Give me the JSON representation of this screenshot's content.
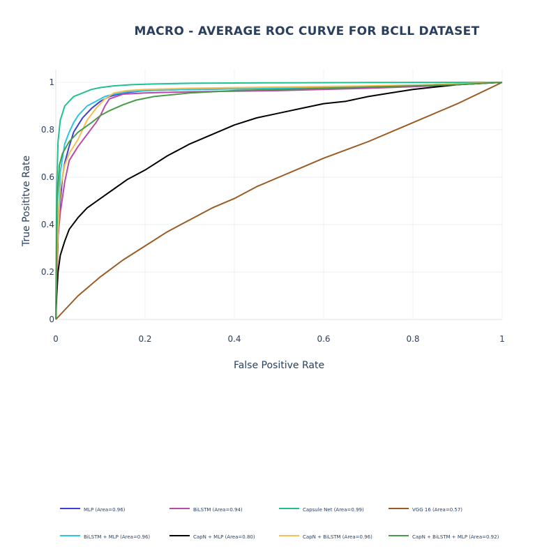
{
  "chart_data": {
    "type": "line",
    "title": "MACRO - AVERAGE  ROC CURVE  FOR  BCLL  DATASET",
    "xlabel": "False Positive Rate",
    "ylabel": "True Posititve Rate",
    "xlim": [
      0,
      1
    ],
    "ylim": [
      0,
      1
    ],
    "xticks": [
      "0",
      "0.2",
      "0.4",
      "0.6",
      "0.8",
      "1"
    ],
    "yticks": [
      "0",
      "0.2",
      "0.4",
      "0.6",
      "0.8",
      "1"
    ],
    "grid": true,
    "legend_position": "bottom",
    "series": [
      {
        "name": "MLP (Area=0.96)",
        "color": "#3b3fd6",
        "x": [
          0,
          0.005,
          0.01,
          0.015,
          0.02,
          0.03,
          0.04,
          0.05,
          0.06,
          0.08,
          0.1,
          0.12,
          0.15,
          0.2,
          0.3,
          0.5,
          0.7,
          0.85,
          1
        ],
        "y": [
          0,
          0.35,
          0.5,
          0.6,
          0.66,
          0.73,
          0.79,
          0.82,
          0.85,
          0.89,
          0.92,
          0.94,
          0.955,
          0.965,
          0.97,
          0.975,
          0.98,
          0.99,
          1
        ]
      },
      {
        "name": "BiLSTM (Area=0.94)",
        "color": "#b84aa6",
        "x": [
          0,
          0.005,
          0.01,
          0.02,
          0.03,
          0.05,
          0.07,
          0.09,
          0.1,
          0.11,
          0.12,
          0.15,
          0.2,
          0.3,
          0.5,
          0.7,
          0.85,
          1
        ],
        "y": [
          0,
          0.35,
          0.45,
          0.58,
          0.67,
          0.73,
          0.78,
          0.83,
          0.86,
          0.9,
          0.93,
          0.95,
          0.955,
          0.96,
          0.965,
          0.975,
          0.985,
          1
        ]
      },
      {
        "name": "Capsule Net (Area=0.99)",
        "color": "#1fc28f",
        "x": [
          0,
          0.002,
          0.005,
          0.01,
          0.02,
          0.03,
          0.04,
          0.06,
          0.08,
          0.1,
          0.13,
          0.17,
          0.22,
          0.3,
          0.5,
          0.7,
          1
        ],
        "y": [
          0,
          0.55,
          0.75,
          0.84,
          0.9,
          0.92,
          0.94,
          0.955,
          0.97,
          0.978,
          0.985,
          0.99,
          0.993,
          0.996,
          0.998,
          0.999,
          1
        ]
      },
      {
        "name": "VGG 16 (Area=0.57)",
        "color": "#9b5b22",
        "x": [
          0,
          0.05,
          0.1,
          0.15,
          0.2,
          0.25,
          0.3,
          0.35,
          0.4,
          0.45,
          0.5,
          0.55,
          0.6,
          0.7,
          0.8,
          0.9,
          1
        ],
        "y": [
          0,
          0.1,
          0.18,
          0.25,
          0.31,
          0.37,
          0.42,
          0.47,
          0.51,
          0.56,
          0.6,
          0.64,
          0.68,
          0.75,
          0.83,
          0.91,
          1
        ]
      },
      {
        "name": "BiLSTM + MLP (Area=0.96)",
        "color": "#29c4e8",
        "x": [
          0,
          0.003,
          0.01,
          0.02,
          0.03,
          0.04,
          0.05,
          0.07,
          0.09,
          0.11,
          0.13,
          0.16,
          0.2,
          0.3,
          0.5,
          0.7,
          0.85,
          1
        ],
        "y": [
          0,
          0.3,
          0.62,
          0.74,
          0.79,
          0.83,
          0.86,
          0.9,
          0.92,
          0.94,
          0.95,
          0.96,
          0.965,
          0.97,
          0.975,
          0.98,
          0.99,
          1
        ]
      },
      {
        "name": "CapN + MLP (Area=0.80)",
        "color": "#000000",
        "x": [
          0,
          0.002,
          0.005,
          0.01,
          0.02,
          0.03,
          0.05,
          0.07,
          0.1,
          0.13,
          0.16,
          0.2,
          0.25,
          0.3,
          0.35,
          0.4,
          0.45,
          0.5,
          0.55,
          0.6,
          0.65,
          0.7,
          0.75,
          0.8,
          0.85,
          0.9,
          1
        ],
        "y": [
          0,
          0.1,
          0.2,
          0.27,
          0.33,
          0.38,
          0.43,
          0.47,
          0.51,
          0.55,
          0.59,
          0.63,
          0.69,
          0.74,
          0.78,
          0.82,
          0.85,
          0.87,
          0.89,
          0.91,
          0.92,
          0.94,
          0.955,
          0.97,
          0.98,
          0.99,
          1
        ]
      },
      {
        "name": "CapN + BiLSTM (Area=0.96)",
        "color": "#f5c04f",
        "x": [
          0,
          0.003,
          0.01,
          0.02,
          0.03,
          0.04,
          0.05,
          0.06,
          0.07,
          0.09,
          0.11,
          0.13,
          0.16,
          0.2,
          0.3,
          0.5,
          0.7,
          0.85,
          1
        ],
        "y": [
          0,
          0.3,
          0.55,
          0.65,
          0.7,
          0.73,
          0.76,
          0.8,
          0.84,
          0.89,
          0.93,
          0.955,
          0.965,
          0.97,
          0.975,
          0.98,
          0.985,
          0.99,
          1
        ]
      },
      {
        "name": "CapN + BiLSTM + MLP (Area=0.92)",
        "color": "#4a9a4a",
        "x": [
          0,
          0.003,
          0.008,
          0.015,
          0.03,
          0.05,
          0.08,
          0.1,
          0.12,
          0.15,
          0.18,
          0.22,
          0.3,
          0.4,
          0.5,
          0.6,
          0.7,
          0.8,
          0.9,
          1
        ],
        "y": [
          0,
          0.5,
          0.65,
          0.7,
          0.75,
          0.79,
          0.83,
          0.86,
          0.88,
          0.905,
          0.925,
          0.94,
          0.955,
          0.965,
          0.97,
          0.975,
          0.98,
          0.985,
          0.99,
          1
        ]
      }
    ]
  }
}
